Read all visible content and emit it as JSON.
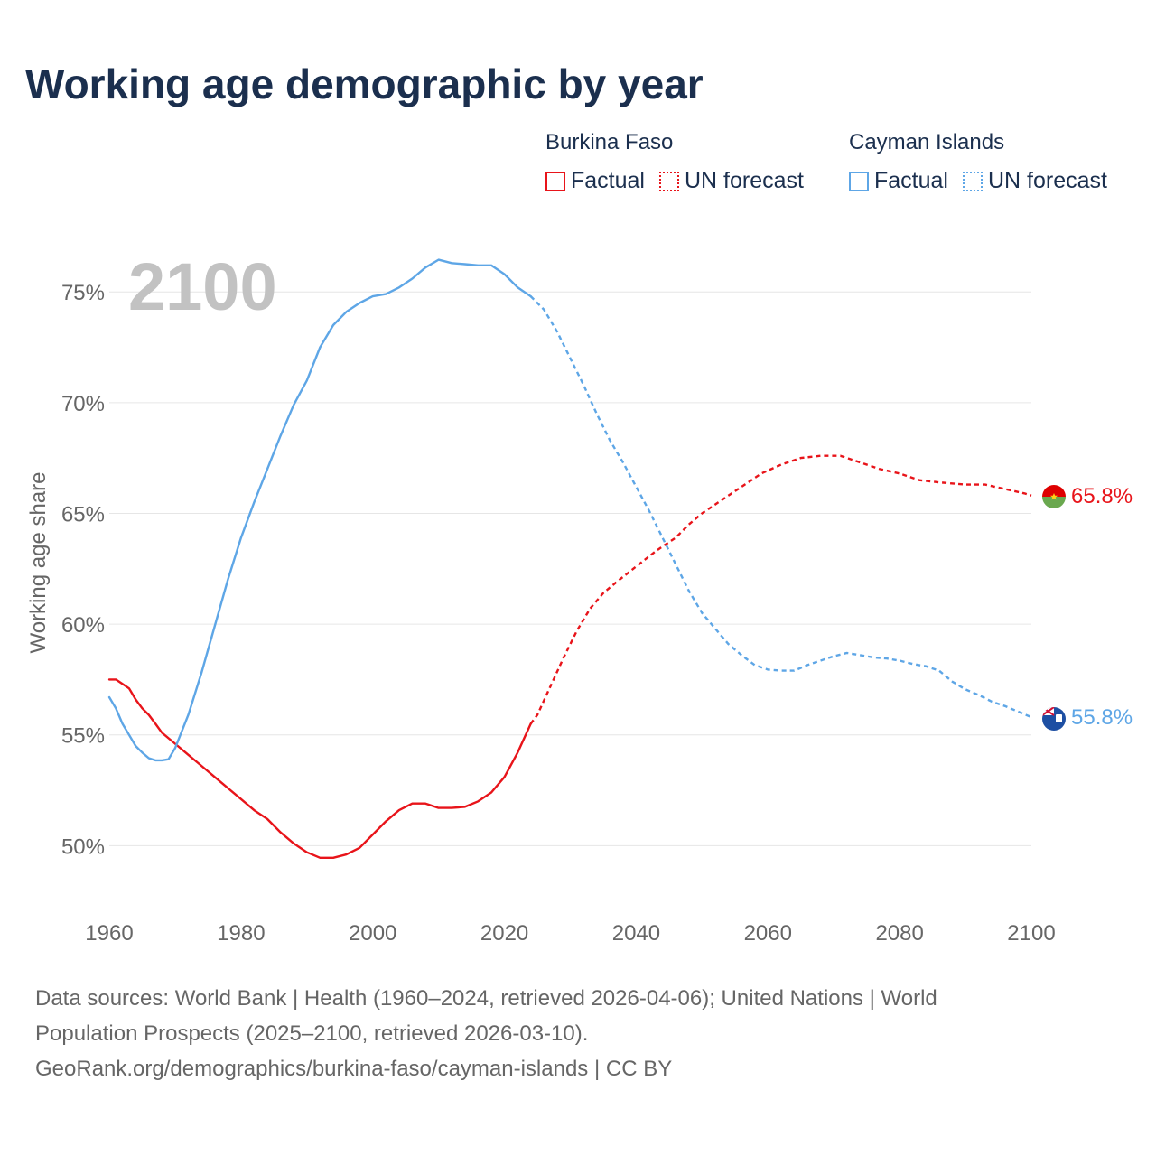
{
  "title": "Working age demographic by year",
  "legend": {
    "groups": [
      {
        "country": "Burkina Faso",
        "color": "#e8141a",
        "factual_label": "Factual",
        "forecast_label": "UN forecast"
      },
      {
        "country": "Cayman Islands",
        "color": "#5ea6e6",
        "factual_label": "Factual",
        "forecast_label": "UN forecast"
      }
    ]
  },
  "year_watermark": "2100",
  "footer": {
    "lines": [
      "Data sources: World Bank | Health (1960–2024, retrieved 2026-04-06); United Nations | World",
      "Population Prospects (2025–2100, retrieved 2026-03-10).",
      "GeoRank.org/demographics/burkina-faso/cayman-islands | CC BY"
    ]
  },
  "chart_data": {
    "type": "line",
    "title": "Working age demographic by year",
    "xlabel": "",
    "ylabel": "Working age share",
    "xlim": [
      1960,
      2100
    ],
    "ylim": [
      47.2,
      78.8
    ],
    "x_ticks": [
      1960,
      1980,
      2000,
      2020,
      2040,
      2060,
      2080,
      2100
    ],
    "y_ticks": [
      50,
      55,
      60,
      65,
      70,
      75
    ],
    "y_tick_labels": [
      "50%",
      "55%",
      "60%",
      "65%",
      "70%",
      "75%"
    ],
    "grid": true,
    "forecast_start": 2024,
    "series": [
      {
        "name": "Burkina Faso",
        "color": "#e8141a",
        "end_label": "65.8%",
        "flag_icon": "burkina-faso-flag-icon",
        "points": [
          [
            1960,
            57.5
          ],
          [
            1961,
            57.5
          ],
          [
            1962,
            57.3
          ],
          [
            1963,
            57.1
          ],
          [
            1964,
            56.6
          ],
          [
            1965,
            56.2
          ],
          [
            1966,
            55.9
          ],
          [
            1967,
            55.5
          ],
          [
            1968,
            55.1
          ],
          [
            1970,
            54.6
          ],
          [
            1972,
            54.1
          ],
          [
            1974,
            53.6
          ],
          [
            1976,
            53.1
          ],
          [
            1978,
            52.6
          ],
          [
            1980,
            52.1
          ],
          [
            1982,
            51.6
          ],
          [
            1984,
            51.2
          ],
          [
            1986,
            50.6
          ],
          [
            1988,
            50.1
          ],
          [
            1990,
            49.7
          ],
          [
            1992,
            49.45
          ],
          [
            1994,
            49.45
          ],
          [
            1996,
            49.6
          ],
          [
            1998,
            49.9
          ],
          [
            2000,
            50.5
          ],
          [
            2002,
            51.1
          ],
          [
            2004,
            51.6
          ],
          [
            2006,
            51.9
          ],
          [
            2008,
            51.9
          ],
          [
            2010,
            51.7
          ],
          [
            2012,
            51.7
          ],
          [
            2014,
            51.75
          ],
          [
            2016,
            52.0
          ],
          [
            2018,
            52.4
          ],
          [
            2020,
            53.1
          ],
          [
            2022,
            54.2
          ],
          [
            2024,
            55.5
          ],
          [
            2025,
            55.9
          ],
          [
            2027,
            57.2
          ],
          [
            2029,
            58.5
          ],
          [
            2031,
            59.7
          ],
          [
            2033,
            60.7
          ],
          [
            2035,
            61.4
          ],
          [
            2037,
            61.9
          ],
          [
            2040,
            62.6
          ],
          [
            2043,
            63.3
          ],
          [
            2046,
            63.9
          ],
          [
            2048,
            64.5
          ],
          [
            2050,
            65.0
          ],
          [
            2053,
            65.6
          ],
          [
            2056,
            66.2
          ],
          [
            2059,
            66.8
          ],
          [
            2062,
            67.2
          ],
          [
            2065,
            67.5
          ],
          [
            2068,
            67.6
          ],
          [
            2071,
            67.6
          ],
          [
            2074,
            67.3
          ],
          [
            2077,
            67.0
          ],
          [
            2080,
            66.8
          ],
          [
            2083,
            66.5
          ],
          [
            2086,
            66.4
          ],
          [
            2090,
            66.3
          ],
          [
            2093,
            66.3
          ],
          [
            2096,
            66.1
          ],
          [
            2099,
            65.9
          ],
          [
            2100,
            65.8
          ]
        ]
      },
      {
        "name": "Cayman Islands",
        "color": "#5ea6e6",
        "end_label": "55.8%",
        "flag_icon": "cayman-islands-flag-icon",
        "points": [
          [
            1960,
            56.7
          ],
          [
            1961,
            56.2
          ],
          [
            1962,
            55.5
          ],
          [
            1963,
            55.0
          ],
          [
            1964,
            54.5
          ],
          [
            1965,
            54.2
          ],
          [
            1966,
            53.95
          ],
          [
            1967,
            53.85
          ],
          [
            1968,
            53.85
          ],
          [
            1969,
            53.9
          ],
          [
            1970,
            54.4
          ],
          [
            1972,
            55.9
          ],
          [
            1974,
            57.8
          ],
          [
            1976,
            59.9
          ],
          [
            1978,
            62.0
          ],
          [
            1980,
            63.9
          ],
          [
            1982,
            65.5
          ],
          [
            1984,
            67.0
          ],
          [
            1986,
            68.5
          ],
          [
            1988,
            69.9
          ],
          [
            1990,
            71.0
          ],
          [
            1992,
            72.5
          ],
          [
            1994,
            73.5
          ],
          [
            1996,
            74.1
          ],
          [
            1998,
            74.5
          ],
          [
            2000,
            74.8
          ],
          [
            2002,
            74.9
          ],
          [
            2004,
            75.2
          ],
          [
            2006,
            75.6
          ],
          [
            2008,
            76.1
          ],
          [
            2010,
            76.45
          ],
          [
            2012,
            76.3
          ],
          [
            2014,
            76.25
          ],
          [
            2016,
            76.2
          ],
          [
            2018,
            76.2
          ],
          [
            2020,
            75.8
          ],
          [
            2022,
            75.2
          ],
          [
            2024,
            74.8
          ],
          [
            2026,
            74.2
          ],
          [
            2028,
            73.2
          ],
          [
            2030,
            72.0
          ],
          [
            2032,
            70.8
          ],
          [
            2034,
            69.5
          ],
          [
            2036,
            68.3
          ],
          [
            2038,
            67.3
          ],
          [
            2040,
            66.2
          ],
          [
            2042,
            65.1
          ],
          [
            2044,
            63.9
          ],
          [
            2046,
            62.7
          ],
          [
            2048,
            61.5
          ],
          [
            2050,
            60.5
          ],
          [
            2052,
            59.8
          ],
          [
            2054,
            59.1
          ],
          [
            2056,
            58.6
          ],
          [
            2058,
            58.15
          ],
          [
            2060,
            57.95
          ],
          [
            2062,
            57.9
          ],
          [
            2064,
            57.9
          ],
          [
            2066,
            58.15
          ],
          [
            2068,
            58.35
          ],
          [
            2070,
            58.55
          ],
          [
            2072,
            58.7
          ],
          [
            2074,
            58.6
          ],
          [
            2076,
            58.5
          ],
          [
            2078,
            58.45
          ],
          [
            2080,
            58.35
          ],
          [
            2082,
            58.2
          ],
          [
            2084,
            58.1
          ],
          [
            2086,
            57.9
          ],
          [
            2088,
            57.4
          ],
          [
            2090,
            57.05
          ],
          [
            2092,
            56.8
          ],
          [
            2094,
            56.5
          ],
          [
            2096,
            56.3
          ],
          [
            2098,
            56.05
          ],
          [
            2100,
            55.8
          ]
        ]
      }
    ]
  }
}
